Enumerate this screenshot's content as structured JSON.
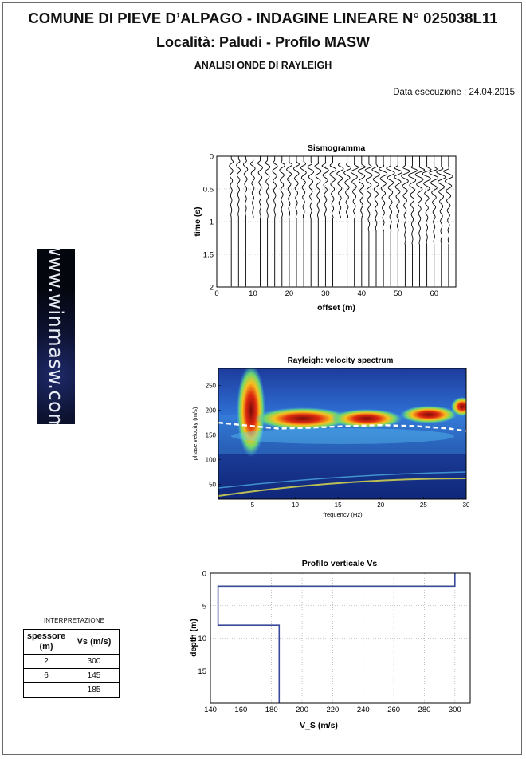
{
  "header": {
    "title": "COMUNE DI PIEVE D’ALPAGO - INDAGINE LINEARE N° 025038L11",
    "subtitle": "Località: Paludi - Profilo MASW",
    "analysis": "ANALISI  ONDE DI RAYLEIGH",
    "date": "Data esecuzione : 24.04.2015"
  },
  "logo": {
    "text": "www.winmasw.com"
  },
  "interpretation": {
    "title": "INTERPRETAZIONE",
    "headers": [
      "spessore (m)",
      "Vs (m/s)"
    ],
    "rows": [
      [
        "2",
        "300"
      ],
      [
        "6",
        "145"
      ],
      [
        "",
        "185"
      ]
    ]
  },
  "chart_data": [
    {
      "type": "line",
      "title": "Sismogramma",
      "xlabel": "offset (m)",
      "ylabel": "time (s)",
      "xlim": [
        0,
        66
      ],
      "ylim": [
        2,
        0
      ],
      "xticks": [
        "0",
        "10",
        "20",
        "30",
        "40",
        "50",
        "60"
      ],
      "yticks": [
        "0",
        "0.5",
        "1",
        "1.5",
        "2"
      ],
      "grid": true,
      "trace_offsets": [
        4,
        6,
        8,
        10,
        12,
        14,
        16,
        18,
        20,
        22,
        24,
        26,
        28,
        30,
        32,
        34,
        36,
        38,
        40,
        42,
        44,
        46,
        48,
        50,
        52,
        54,
        56,
        58,
        60,
        62,
        64
      ]
    },
    {
      "type": "heatmap",
      "title": "Rayleigh: velocity spectrum",
      "xlabel": "frequency (Hz)",
      "ylabel": "phase velocity (m/s)",
      "xlim": [
        1,
        30
      ],
      "ylim": [
        20,
        285
      ],
      "xticks": [
        "5",
        "10",
        "15",
        "20",
        "25",
        "30"
      ],
      "yticks": [
        "50",
        "100",
        "150",
        "200",
        "250"
      ],
      "picked_curve": {
        "x": [
          1,
          5,
          8,
          12,
          16,
          20,
          24,
          28,
          30
        ],
        "y": [
          175,
          168,
          163,
          165,
          168,
          170,
          168,
          163,
          158
        ]
      }
    },
    {
      "type": "line",
      "title": "Profilo verticale Vs",
      "xlabel": "V_S (m/s)",
      "ylabel": "depth (m)",
      "xlim": [
        140,
        310
      ],
      "ylim": [
        20,
        0
      ],
      "xticks": [
        "140",
        "160",
        "180",
        "200",
        "220",
        "240",
        "260",
        "280",
        "300"
      ],
      "yticks": [
        "0",
        "5",
        "10",
        "15"
      ],
      "grid": true,
      "series": [
        {
          "x": [
            300,
            300,
            145,
            145,
            185,
            185
          ],
          "y": [
            0,
            2,
            2,
            8,
            8,
            20
          ]
        }
      ]
    }
  ]
}
